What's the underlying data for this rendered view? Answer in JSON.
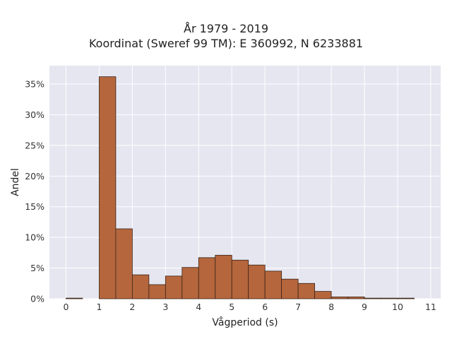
{
  "chart_data": {
    "type": "bar",
    "title_line1": "År 1979 - 2019",
    "title_line2": "Koordinat (Sweref 99 TM): E 360992, N 6233881",
    "xlabel": "Vågperiod (s)",
    "ylabel": "Andel",
    "bin_width": 0.5,
    "bins_start": [
      0,
      0.5,
      1,
      1.5,
      2,
      2.5,
      3,
      3.5,
      4,
      4.5,
      5,
      5.5,
      6,
      6.5,
      7,
      7.5,
      8,
      8.5,
      9,
      9.5,
      10,
      10.5
    ],
    "values": [
      0.1,
      0.0,
      36.2,
      11.4,
      3.9,
      2.3,
      3.7,
      5.1,
      6.7,
      7.1,
      6.3,
      5.5,
      4.5,
      3.2,
      2.5,
      1.2,
      0.3,
      0.3,
      0.1,
      0.1,
      0.1,
      0.0
    ],
    "xlim": [
      -0.5,
      11.3
    ],
    "ylim": [
      0,
      38
    ],
    "x_ticks": [
      0,
      1,
      2,
      3,
      4,
      5,
      6,
      7,
      8,
      9,
      10,
      11
    ],
    "y_ticks": [
      0,
      5,
      10,
      15,
      20,
      25,
      30,
      35
    ],
    "y_tick_labels": [
      "0%",
      "5%",
      "10%",
      "15%",
      "20%",
      "25%",
      "30%",
      "35%"
    ],
    "grid": true,
    "colors": {
      "bar_fill": "#b5663c",
      "bar_edge": "#3a2418",
      "plot_bg": "#e5e6f0",
      "grid": "#ffffff"
    }
  }
}
